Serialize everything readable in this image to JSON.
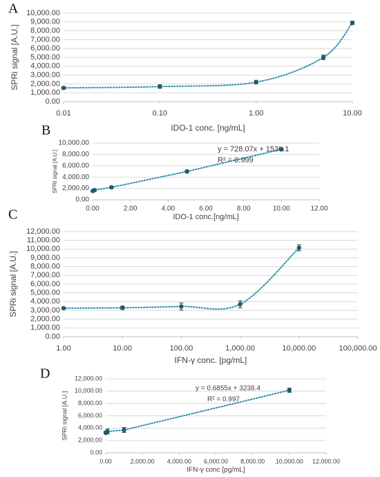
{
  "chart_data": [
    {
      "type": "scatter",
      "panel_label": "A",
      "x_label": "IDO-1 conc. [ng/mL]",
      "y_label": "SPRi signal [A.U.]",
      "xscale": "log",
      "grid": true,
      "trendline": "dotted",
      "color": "#1d5a73",
      "line_color": "#2b8fae",
      "x": [
        0.01,
        0.1,
        1,
        5,
        10
      ],
      "values": [
        1550,
        1700,
        2200,
        5000,
        8900
      ],
      "errors": [
        150,
        200,
        200,
        250,
        200
      ],
      "xlim": [
        0.01,
        10
      ],
      "xticks": [
        {
          "value": 0.01,
          "label": "0.01"
        },
        {
          "value": 0.1,
          "label": "0.10"
        },
        {
          "value": 1,
          "label": "1.00"
        },
        {
          "value": 10,
          "label": "10.00"
        }
      ],
      "ylim": [
        0,
        10000
      ],
      "yticks": [
        {
          "value": 0,
          "label": "0.00"
        },
        {
          "value": 1000,
          "label": "1,000.00"
        },
        {
          "value": 2000,
          "label": "2,000.00"
        },
        {
          "value": 3000,
          "label": "3,000.00"
        },
        {
          "value": 4000,
          "label": "4,000.00"
        },
        {
          "value": 5000,
          "label": "5,000.00"
        },
        {
          "value": 6000,
          "label": "6,000.00"
        },
        {
          "value": 7000,
          "label": "7,000.00"
        },
        {
          "value": 8000,
          "label": "8,000.00"
        },
        {
          "value": 9000,
          "label": "9,000.00"
        },
        {
          "value": 10000,
          "label": "10,000.00"
        }
      ]
    },
    {
      "type": "scatter",
      "panel_label": "B",
      "x_label": "IDO-1  conc.[ng/mL]",
      "y_label": "SPRi signal [A.U.]",
      "xscale": "linear",
      "grid": true,
      "trendline": "dotted",
      "color": "#1d5a73",
      "line_color": "#2b8fae",
      "annotations": [
        "y = 728.07x + 1530.1",
        "R² = 0.999"
      ],
      "x": [
        0.01,
        0.1,
        1,
        5,
        10
      ],
      "values": [
        1550,
        1700,
        2200,
        5000,
        8900
      ],
      "errors": [
        150,
        200,
        200,
        250,
        200
      ],
      "xlim": [
        0,
        12
      ],
      "xticks": [
        {
          "value": 0,
          "label": "0.00"
        },
        {
          "value": 2,
          "label": "2.00"
        },
        {
          "value": 4,
          "label": "4.00"
        },
        {
          "value": 6,
          "label": "6.00"
        },
        {
          "value": 8,
          "label": "8.00"
        },
        {
          "value": 10,
          "label": "10.00"
        },
        {
          "value": 12,
          "label": "12.00"
        }
      ],
      "ylim": [
        0,
        10000
      ],
      "yticks": [
        {
          "value": 0,
          "label": "0.00"
        },
        {
          "value": 2000,
          "label": "2,000.00"
        },
        {
          "value": 4000,
          "label": "4,000.00"
        },
        {
          "value": 6000,
          "label": "6,000.00"
        },
        {
          "value": 8000,
          "label": "8,000.00"
        },
        {
          "value": 10000,
          "label": "10,000.00"
        }
      ]
    },
    {
      "type": "scatter",
      "panel_label": "C",
      "x_label": "IFN-γ conc. [pg/mL]",
      "y_label": "SPRi signal [A.U.]",
      "xscale": "log",
      "grid": true,
      "trendline": "dotted",
      "color": "#1d5a73",
      "line_color": "#2b8fae",
      "x": [
        1,
        10,
        100,
        1000,
        10000
      ],
      "values": [
        3250,
        3300,
        3450,
        3700,
        10150
      ],
      "errors": [
        100,
        200,
        400,
        400,
        350
      ],
      "xlim": [
        1,
        100000
      ],
      "xticks": [
        {
          "value": 1,
          "label": "1.00"
        },
        {
          "value": 10,
          "label": "10.00"
        },
        {
          "value": 100,
          "label": "100.00"
        },
        {
          "value": 1000,
          "label": "1,000.00"
        },
        {
          "value": 10000,
          "label": "10,000.00"
        },
        {
          "value": 100000,
          "label": "100,000.00"
        }
      ],
      "ylim": [
        0,
        12000
      ],
      "yticks": [
        {
          "value": 0,
          "label": "0.00"
        },
        {
          "value": 1000,
          "label": "1,000.00"
        },
        {
          "value": 2000,
          "label": "2,000.00"
        },
        {
          "value": 3000,
          "label": "3,000.00"
        },
        {
          "value": 4000,
          "label": "4,000.00"
        },
        {
          "value": 5000,
          "label": "5,000.00"
        },
        {
          "value": 6000,
          "label": "6,000.00"
        },
        {
          "value": 7000,
          "label": "7,000.00"
        },
        {
          "value": 8000,
          "label": "8,000.00"
        },
        {
          "value": 9000,
          "label": "9,000.00"
        },
        {
          "value": 10000,
          "label": "10,000.00"
        },
        {
          "value": 11000,
          "label": "11,000.00"
        },
        {
          "value": 12000,
          "label": "12,000.00"
        }
      ]
    },
    {
      "type": "scatter",
      "panel_label": "D",
      "x_label": "IFN-γ conc [pg/mL]",
      "y_label": "SPRi signal [A.U.]",
      "xscale": "linear",
      "grid": true,
      "trendline": "dotted",
      "color": "#1d5a73",
      "line_color": "#2b8fae",
      "annotations": [
        "y = 0.6855x + 3238.4",
        "R² = 0.997"
      ],
      "x": [
        1,
        10,
        100,
        1000,
        10000
      ],
      "values": [
        3250,
        3300,
        3450,
        3700,
        10150
      ],
      "errors": [
        100,
        200,
        400,
        400,
        350
      ],
      "xlim": [
        0,
        12000
      ],
      "xticks": [
        {
          "value": 0,
          "label": "0.00"
        },
        {
          "value": 2000,
          "label": "2,000.00"
        },
        {
          "value": 4000,
          "label": "4,000.00"
        },
        {
          "value": 6000,
          "label": "6,000.00"
        },
        {
          "value": 8000,
          "label": "8,000.00"
        },
        {
          "value": 10000,
          "label": "10,000.00"
        },
        {
          "value": 12000,
          "label": "12,000.00"
        }
      ],
      "ylim": [
        0,
        12000
      ],
      "yticks": [
        {
          "value": 0,
          "label": "0.00"
        },
        {
          "value": 2000,
          "label": "2,000.00"
        },
        {
          "value": 4000,
          "label": "4,000.00"
        },
        {
          "value": 6000,
          "label": "6,000.00"
        },
        {
          "value": 8000,
          "label": "8,000.00"
        },
        {
          "value": 10000,
          "label": "10,000.00"
        },
        {
          "value": 12000,
          "label": "12,000.00"
        }
      ]
    }
  ]
}
